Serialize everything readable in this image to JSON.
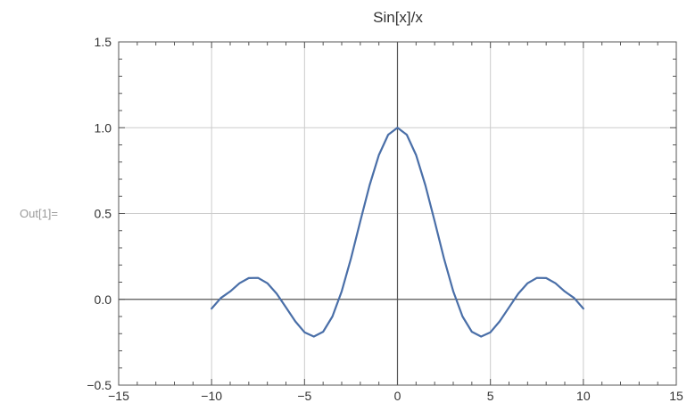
{
  "cell": {
    "out_label": "Out[1]="
  },
  "chart_data": {
    "type": "line",
    "title": "Sin[x]/x",
    "xlabel": "",
    "ylabel": "",
    "xlim": [
      -15,
      15
    ],
    "ylim": [
      -0.5,
      1.5
    ],
    "x_ticks": [
      -15,
      -10,
      -5,
      0,
      5,
      10,
      15
    ],
    "x_tick_labels": [
      "−15",
      "−10",
      "−5",
      "0",
      "5",
      "10",
      "15"
    ],
    "y_ticks": [
      -0.5,
      0.0,
      0.5,
      1.0,
      1.5
    ],
    "y_tick_labels": [
      "−0.5",
      "0.0",
      "0.5",
      "1.0",
      "1.5"
    ],
    "grid": true,
    "series": [
      {
        "color": "#4a6fa8",
        "x": [
          -10,
          -9.5,
          -9,
          -8.5,
          -8,
          -7.5,
          -7,
          -6.5,
          -6,
          -5.5,
          -5,
          -4.5,
          -4,
          -3.5,
          -3,
          -2.5,
          -2,
          -1.5,
          -1,
          -0.5,
          0,
          0.5,
          1,
          1.5,
          2,
          2.5,
          3,
          3.5,
          4,
          4.5,
          5,
          5.5,
          6,
          6.5,
          7,
          7.5,
          8,
          8.5,
          9,
          9.5,
          10
        ],
        "y": [
          -0.054,
          0.008,
          0.046,
          0.094,
          0.124,
          0.125,
          0.094,
          0.033,
          -0.047,
          -0.128,
          -0.192,
          -0.217,
          -0.189,
          -0.1,
          0.047,
          0.239,
          0.455,
          0.665,
          0.841,
          0.959,
          1.0,
          0.959,
          0.841,
          0.665,
          0.455,
          0.239,
          0.047,
          -0.1,
          -0.189,
          -0.217,
          -0.192,
          -0.128,
          -0.047,
          0.033,
          0.094,
          0.125,
          0.124,
          0.094,
          0.046,
          0.008,
          -0.054
        ]
      }
    ]
  }
}
